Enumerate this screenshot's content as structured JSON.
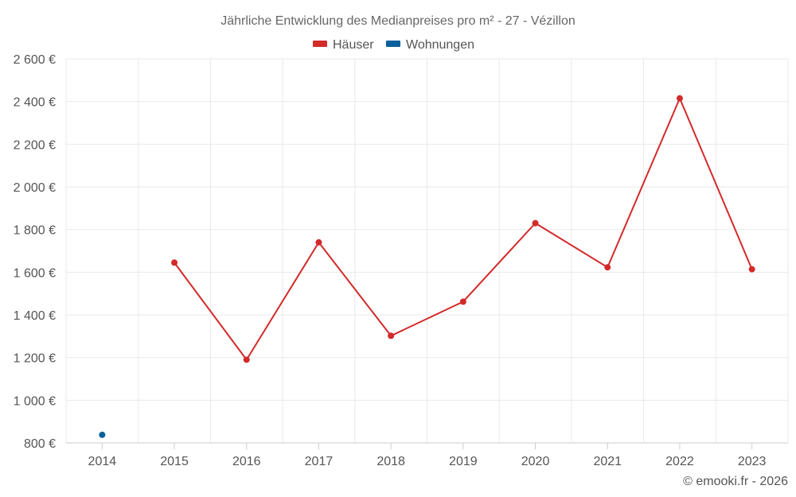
{
  "chart_data": {
    "type": "line",
    "title": "Jährliche Entwicklung des Medianpreises pro m² - 27 - Vézillon",
    "categories": [
      "2014",
      "2015",
      "2016",
      "2017",
      "2018",
      "2019",
      "2020",
      "2021",
      "2022",
      "2023"
    ],
    "y_ticks": [
      800,
      1000,
      1200,
      1400,
      1600,
      1800,
      2000,
      2200,
      2400,
      2600
    ],
    "y_tick_labels": [
      "800 €",
      "1 000 €",
      "1 200 €",
      "1 400 €",
      "1 600 €",
      "1 800 €",
      "2 000 €",
      "2 200 €",
      "2 400 €",
      "2 600 €"
    ],
    "ylim": [
      800,
      2600
    ],
    "xlabel": "",
    "ylabel": "",
    "grid": true,
    "legend_position": "top-center",
    "series": [
      {
        "name": "Häuser",
        "color": "#d32a2a",
        "values": [
          null,
          1645,
          1190,
          1740,
          1302,
          1462,
          1830,
          1623,
          2415,
          1614
        ]
      },
      {
        "name": "Wohnungen",
        "color": "#07609c",
        "values": [
          838,
          null,
          null,
          null,
          null,
          null,
          null,
          null,
          null,
          null
        ]
      }
    ],
    "credit": "© emooki.fr - 2026"
  }
}
